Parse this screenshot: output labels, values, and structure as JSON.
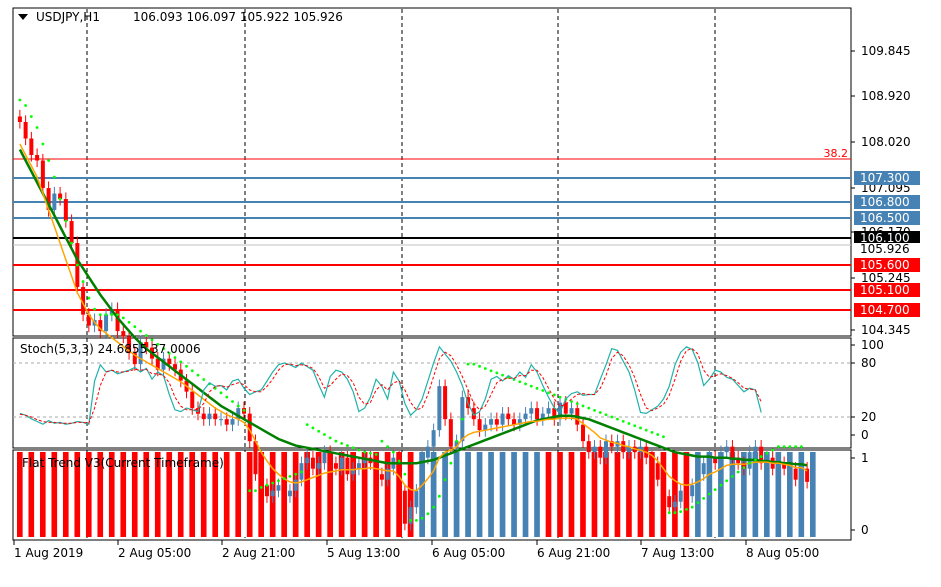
{
  "header": {
    "title": "USDJPY,H1",
    "ohlc": "106.093 106.097 105.922 105.926"
  },
  "fib_label": "38.2",
  "price_axis": {
    "ticks": [
      "109.845",
      "108.920",
      "108.020",
      "107.095",
      "106.170",
      "105.245",
      "104.345"
    ]
  },
  "levels": [
    {
      "value": "107.300",
      "color": "#4682b4"
    },
    {
      "value": "106.800",
      "color": "#4682b4"
    },
    {
      "value": "106.500",
      "color": "#4682b4"
    },
    {
      "value": "106.100",
      "color": "#000000"
    },
    {
      "value": "105.600",
      "color": "#ff0000"
    },
    {
      "value": "105.100",
      "color": "#ff0000"
    },
    {
      "value": "104.700",
      "color": "#ff0000"
    }
  ],
  "current_price": "105.926",
  "fib_color": "#ff0000",
  "stoch": {
    "label": "Stoch(5,3,3) 24.6855 37.0006",
    "ticks": [
      "100",
      "80",
      "20",
      "0"
    ]
  },
  "flat_trend": {
    "label": "Flat Trend V3(Current Timeframe)",
    "ticks": [
      "1",
      "0"
    ]
  },
  "time_axis": [
    "1 Aug 2019",
    "2 Aug 05:00",
    "2 Aug 21:00",
    "5 Aug 13:00",
    "6 Aug 05:00",
    "6 Aug 21:00",
    "7 Aug 13:00",
    "8 Aug 05:00"
  ],
  "chart_data": {
    "type": "candlestick",
    "symbol": "USDJPY",
    "timeframe": "H1",
    "ylim": [
      104.3,
      110.2
    ],
    "close": [
      109.2,
      109.05,
      108.9,
      108.85,
      108.6,
      108.4,
      108.55,
      108.5,
      108.3,
      108.1,
      107.7,
      107.45,
      107.35,
      107.4,
      107.3,
      107.45,
      107.5,
      107.3,
      107.25,
      107.1,
      107.0,
      107.2,
      107.15,
      107.05,
      106.95,
      107.05,
      107.0,
      106.95,
      106.85,
      106.75,
      106.6,
      106.55,
      106.5,
      106.55,
      106.5,
      106.5,
      106.45,
      106.5,
      106.6,
      106.55,
      106.3,
      106.0,
      105.9,
      105.8,
      105.85,
      105.9,
      105.8,
      105.85,
      105.95,
      106.1,
      106.15,
      106.05,
      106.1,
      106.2,
      106.1,
      106.05,
      106.15,
      106.0,
      106.05,
      106.1,
      106.15,
      106.1,
      106.0,
      105.95,
      106.05,
      106.15,
      105.85,
      105.55,
      105.7,
      105.85,
      106.15,
      106.25,
      106.4,
      106.8,
      106.5,
      106.25,
      106.3,
      106.7,
      106.6,
      106.5,
      106.4,
      106.45,
      106.5,
      106.45,
      106.55,
      106.5,
      106.45,
      106.5,
      106.55,
      106.6,
      106.5,
      106.55,
      106.6,
      106.5,
      106.65,
      106.55,
      106.6,
      106.45,
      106.3,
      106.2,
      106.25,
      106.15,
      106.3,
      106.25,
      106.3,
      106.2,
      106.25,
      106.2,
      106.25,
      106.15,
      106.1,
      105.95,
      105.8,
      105.7,
      105.75,
      105.85,
      105.8,
      105.9,
      106.0,
      106.1,
      106.15,
      106.1,
      106.2,
      106.25,
      106.15,
      106.1,
      106.05,
      106.2,
      106.25,
      106.1,
      106.15,
      106.05,
      106.1,
      106.05,
      106.05,
      105.95,
      106.05,
      105.93
    ],
    "ma_slow": [
      108.95,
      108.85,
      108.75,
      108.65,
      108.55,
      108.45,
      108.35,
      108.25,
      108.15,
      108.05,
      107.95,
      107.87,
      107.79,
      107.71,
      107.63,
      107.56,
      107.49,
      107.42,
      107.36,
      107.3,
      107.24,
      107.19,
      107.14,
      107.1,
      107.06,
      107.02,
      106.98,
      106.94,
      106.9,
      106.86,
      106.82,
      106.78,
      106.74,
      106.7,
      106.66,
      106.62,
      106.59,
      106.56,
      106.53,
      106.5,
      106.47,
      106.44,
      106.41,
      106.38,
      106.35,
      106.32,
      106.3,
      106.28,
      106.26,
      106.25,
      106.24,
      106.23,
      106.22,
      106.21,
      106.2,
      106.19,
      106.18,
      106.17,
      106.16,
      106.15,
      106.14,
      106.13,
      106.12,
      106.11,
      106.1,
      106.1,
      106.1,
      106.1,
      106.1,
      106.1,
      106.11,
      106.12,
      106.13,
      106.15,
      106.17,
      106.19,
      106.21,
      106.23,
      106.25,
      106.27,
      106.29,
      106.31,
      106.33,
      106.35,
      106.37,
      106.39,
      106.41,
      106.43,
      106.45,
      106.47,
      106.49,
      106.5,
      106.51,
      106.52,
      106.53,
      106.53,
      106.53,
      106.52,
      106.51,
      106.5,
      106.48,
      106.46,
      106.44,
      106.42,
      106.4,
      106.38,
      106.36,
      106.34,
      106.32,
      106.3,
      106.28,
      106.26,
      106.24,
      106.22,
      106.2,
      106.19,
      106.18,
      106.17,
      106.16,
      106.16,
      106.16,
      106.15,
      106.15,
      106.15,
      106.14,
      106.14,
      106.13,
      106.13,
      106.13,
      106.12,
      106.12,
      106.11,
      106.11,
      106.1,
      106.1,
      106.09,
      106.09,
      106.08
    ],
    "ma_fast": [
      109.0,
      108.9,
      108.8,
      108.7,
      108.55,
      108.4,
      108.25,
      108.1,
      107.95,
      107.8,
      107.65,
      107.55,
      107.45,
      107.38,
      107.32,
      107.28,
      107.24,
      107.2,
      107.16,
      107.12,
      107.08,
      107.05,
      107.02,
      106.99,
      106.96,
      106.93,
      106.9,
      106.87,
      106.84,
      106.8,
      106.76,
      106.72,
      106.68,
      106.64,
      106.6,
      106.57,
      106.54,
      106.52,
      106.5,
      106.47,
      106.4,
      106.3,
      106.2,
      106.12,
      106.05,
      106.0,
      105.96,
      105.93,
      105.92,
      105.93,
      105.95,
      105.97,
      105.99,
      106.01,
      106.02,
      106.03,
      106.04,
      106.04,
      106.04,
      106.05,
      106.05,
      106.06,
      106.05,
      106.04,
      106.03,
      106.03,
      105.98,
      105.9,
      105.86,
      105.85,
      105.9,
      105.96,
      106.03,
      106.15,
      106.2,
      106.22,
      106.25,
      106.32,
      106.36,
      106.38,
      106.39,
      106.4,
      106.41,
      106.42,
      106.43,
      106.44,
      106.45,
      106.46,
      106.47,
      106.48,
      106.48,
      106.49,
      106.5,
      106.5,
      106.51,
      106.51,
      106.51,
      106.5,
      106.46,
      106.42,
      106.38,
      106.33,
      106.31,
      106.29,
      106.28,
      106.26,
      106.25,
      106.23,
      106.22,
      106.2,
      106.17,
      106.12,
      106.05,
      105.98,
      105.94,
      105.91,
      105.9,
      105.91,
      105.93,
      105.96,
      106.0,
      106.02,
      106.05,
      106.08,
      106.09,
      106.09,
      106.09,
      106.1,
      106.11,
      106.11,
      106.11,
      106.1,
      106.1,
      106.09,
      106.08,
      106.06,
      106.06,
      106.03
    ],
    "sar": [
      109.4,
      109.35,
      109.25,
      109.15,
      109.0,
      108.85,
      108.7,
      108.5,
      108.3,
      108.1,
      107.9,
      107.75,
      107.6,
      107.5,
      107.45,
      107.45,
      107.45,
      107.45,
      107.42,
      107.38,
      107.34,
      107.3,
      107.26,
      107.22,
      107.18,
      107.14,
      107.1,
      107.06,
      107.02,
      106.98,
      106.94,
      106.9,
      106.86,
      106.82,
      106.78,
      106.74,
      106.7,
      106.66,
      106.62,
      106.58,
      105.85,
      105.85,
      105.88,
      105.9,
      105.92,
      105.94,
      105.96,
      105.98,
      106.0,
      106.02,
      106.45,
      106.42,
      106.39,
      106.36,
      106.33,
      106.3,
      106.28,
      106.26,
      106.24,
      106.22,
      106.2,
      106.19,
      106.18,
      106.3,
      106.25,
      106.2,
      106.12,
      106.0,
      105.58,
      105.58,
      105.6,
      105.64,
      105.7,
      105.8,
      105.95,
      106.1,
      106.3,
      106.5,
      107.0,
      107.0,
      106.98,
      106.96,
      106.94,
      106.92,
      106.9,
      106.88,
      106.86,
      106.84,
      106.82,
      106.8,
      106.78,
      106.76,
      106.74,
      106.72,
      106.7,
      106.68,
      106.66,
      106.64,
      106.62,
      106.6,
      106.58,
      106.56,
      106.54,
      106.52,
      106.5,
      106.48,
      106.46,
      106.44,
      106.42,
      106.4,
      106.38,
      106.36,
      106.34,
      105.65,
      105.65,
      105.66,
      105.68,
      105.7,
      105.74,
      105.78,
      105.82,
      105.86,
      105.9,
      105.94,
      105.98,
      106.02,
      106.06,
      106.1,
      106.13,
      106.16,
      106.19,
      106.22,
      106.25,
      106.25,
      106.25,
      106.25,
      106.25
    ],
    "stoch_main": [
      24,
      22,
      18,
      15,
      12,
      16,
      13,
      14,
      12,
      13,
      15,
      14,
      12,
      60,
      78,
      70,
      72,
      68,
      70,
      72,
      75,
      70,
      74,
      62,
      70,
      66,
      45,
      28,
      26,
      30,
      28,
      26,
      50,
      58,
      54,
      55,
      50,
      60,
      62,
      52,
      45,
      48,
      50,
      60,
      70,
      78,
      80,
      78,
      75,
      80,
      76,
      72,
      56,
      42,
      65,
      72,
      70,
      62,
      48,
      26,
      30,
      42,
      62,
      54,
      40,
      70,
      60,
      35,
      22,
      28,
      40,
      60,
      80,
      98,
      90,
      82,
      70,
      55,
      35,
      22,
      26,
      40,
      62,
      65,
      60,
      66,
      62,
      70,
      64,
      78,
      70,
      55,
      42,
      30,
      25,
      40,
      46,
      48,
      44,
      45,
      45,
      62,
      78,
      96,
      94,
      82,
      70,
      50,
      25,
      24,
      28,
      32,
      40,
      54,
      78,
      92,
      98,
      95,
      80,
      55,
      62,
      72,
      70,
      64,
      62,
      55,
      48,
      52,
      50,
      25
    ],
    "stoch_signal": [
      23,
      22,
      20,
      17,
      15,
      14,
      14,
      13,
      13,
      13,
      14,
      14,
      13,
      30,
      55,
      70,
      72,
      70,
      70,
      71,
      73,
      72,
      73,
      68,
      68,
      66,
      58,
      42,
      32,
      28,
      28,
      28,
      35,
      48,
      54,
      55,
      53,
      56,
      58,
      56,
      50,
      48,
      48,
      54,
      62,
      72,
      78,
      79,
      77,
      78,
      77,
      74,
      65,
      52,
      55,
      62,
      68,
      66,
      58,
      42,
      34,
      36,
      50,
      56,
      50,
      58,
      60,
      50,
      36,
      28,
      30,
      45,
      65,
      85,
      92,
      88,
      78,
      65,
      50,
      35,
      28,
      32,
      45,
      58,
      62,
      63,
      63,
      66,
      66,
      72,
      72,
      64,
      52,
      40,
      32,
      34,
      40,
      45,
      46,
      45,
      45,
      52,
      66,
      85,
      92,
      88,
      78,
      64,
      45,
      30,
      27,
      30,
      34,
      44,
      62,
      82,
      94,
      96,
      90,
      72,
      64,
      66,
      68,
      66,
      63,
      58,
      52,
      51,
      50,
      37
    ],
    "flat_trend": [
      -1,
      1,
      -1,
      1,
      -1,
      1,
      -1,
      1,
      -1,
      1,
      -1,
      1,
      -1,
      1,
      -1,
      1,
      -1,
      1,
      -1,
      1,
      -1,
      1,
      -1,
      1,
      -1,
      1,
      -1,
      1,
      -1,
      1,
      -1,
      1,
      -1,
      1,
      -1,
      1,
      -1,
      1,
      -1,
      1,
      -1,
      1,
      -1,
      1,
      -1,
      1,
      -1,
      1,
      -1,
      1,
      -1,
      1,
      -1,
      1,
      -1,
      1,
      -1,
      1,
      -1,
      1,
      -1,
      1,
      -1,
      1,
      -1,
      1,
      -1,
      1,
      -1,
      1,
      -1,
      1,
      -1,
      1,
      -1,
      1,
      -1,
      1,
      -1,
      1,
      -1,
      1,
      -1,
      1,
      -1,
      1,
      -1,
      1,
      -1,
      1,
      -1,
      1,
      -1,
      1,
      -1,
      1,
      -1,
      1,
      -1,
      1,
      -1,
      1,
      -1,
      1,
      -1,
      1,
      -1,
      1,
      -1,
      1,
      -1,
      1,
      -1,
      1,
      -1,
      1,
      -1,
      1,
      -1,
      1,
      -1,
      1,
      -1,
      1,
      -1,
      1,
      -1,
      1,
      -1,
      1,
      -1,
      1,
      -1,
      1,
      -1,
      1,
      -1,
      1,
      -1,
      1
    ]
  }
}
